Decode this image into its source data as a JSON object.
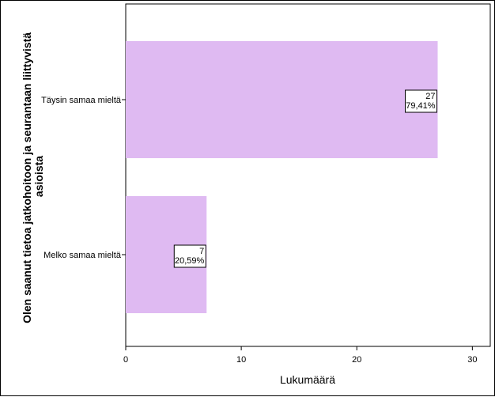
{
  "chart_data": {
    "type": "bar",
    "orientation": "horizontal",
    "title": "",
    "xlabel": "Lukumäärä",
    "ylabel_lines": [
      "Olen saanut tietoa jatkohoitoon ja seurantaan liittyvistä",
      "asioista"
    ],
    "categories": [
      "Täysin samaa mieltä",
      "Melko samaa mieltä"
    ],
    "values": [
      27,
      7
    ],
    "percent_labels": [
      "79,41%",
      "20,59%"
    ],
    "count_labels": [
      "27",
      "7"
    ],
    "xlim": [
      0,
      32
    ],
    "xticks": [
      0,
      10,
      20,
      30
    ],
    "bar_color": "#dfbaf2",
    "grid": false,
    "legend": "none"
  }
}
